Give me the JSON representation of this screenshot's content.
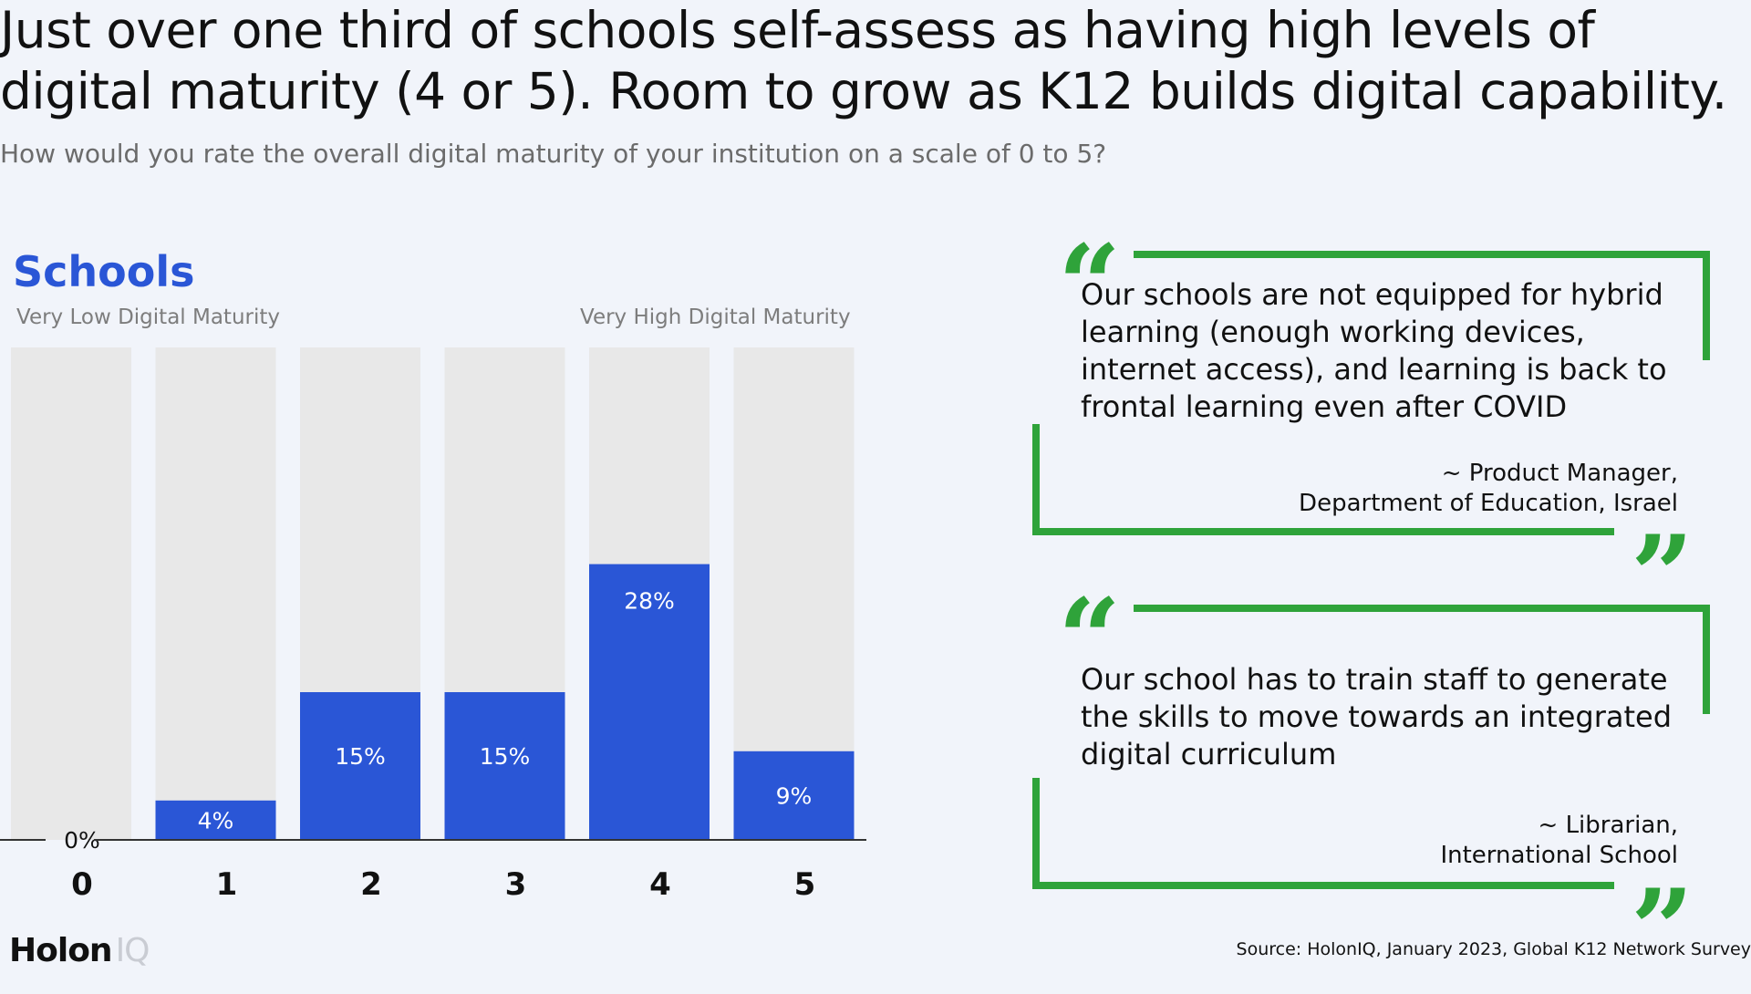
{
  "headline": {
    "line1": "Just over one third of schools self-assess as having high levels of",
    "line2": "digital maturity (4 or 5). Room to grow as K12 builds digital capability."
  },
  "subtitle": "How would you rate the overall digital maturity of your institution on a scale of 0 to 5?",
  "chart_data": {
    "type": "bar",
    "title": "Schools",
    "categories": [
      "0",
      "1",
      "2",
      "3",
      "4",
      "5"
    ],
    "values": [
      0,
      4,
      15,
      15,
      28,
      9
    ],
    "value_labels": [
      "0%",
      "4%",
      "15%",
      "15%",
      "28%",
      "9%"
    ],
    "scale_low_label": "Very Low Digital Maturity",
    "scale_high_label": "Very High Digital Maturity",
    "ylim": [
      0,
      50
    ],
    "grid": false,
    "bar_color": "#2a56d6",
    "track_color": "#e8e8e8"
  },
  "quotes": [
    {
      "text": " Our schools are not equipped for hybrid learning (enough working devices, internet access), and learning is back to frontal learning even after COVID",
      "attribution_line1": "~ Product Manager,",
      "attribution_line2": "Department of Education, Israel"
    },
    {
      "text": "Our school has to train staff to generate the skills to move towards an integrated digital curriculum",
      "attribution_line1": "~ Librarian,",
      "attribution_line2": "International School"
    }
  ],
  "quote_color": "#2fa33a",
  "logo": {
    "part1": "Holon",
    "part2": "IQ"
  },
  "source": "Source: HolonIQ, January 2023, Global K12 Network Survey"
}
